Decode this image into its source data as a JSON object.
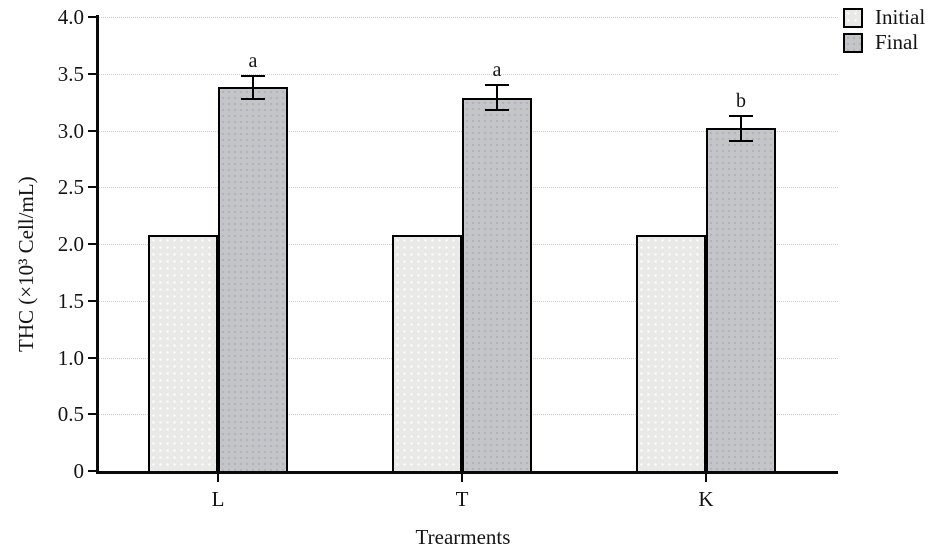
{
  "chart_data": {
    "type": "bar",
    "title": "",
    "xlabel": "Trearments",
    "ylabel": "THC (×10³ Cell/mL)",
    "ylim": [
      0,
      4.0
    ],
    "grid": true,
    "legend_position": "top-right",
    "categories": [
      "L",
      "T",
      "K"
    ],
    "yticks": [
      {
        "value": 0.0,
        "label": "0"
      },
      {
        "value": 0.5,
        "label": "0.5"
      },
      {
        "value": 1.0,
        "label": "1.0"
      },
      {
        "value": 1.5,
        "label": "1.5"
      },
      {
        "value": 2.0,
        "label": "2.0"
      },
      {
        "value": 2.5,
        "label": "2.5"
      },
      {
        "value": 3.0,
        "label": "3.0"
      },
      {
        "value": 3.5,
        "label": "3.5"
      },
      {
        "value": 4.0,
        "label": "4.0"
      }
    ],
    "series": [
      {
        "name": "Initial",
        "fill": "#e9eae8",
        "values": [
          2.08,
          2.08,
          2.08
        ],
        "errors": [
          0,
          0,
          0
        ],
        "letters": [
          "",
          "",
          ""
        ]
      },
      {
        "name": "Final",
        "fill": "#c3c5c8",
        "values": [
          3.38,
          3.29,
          3.02
        ],
        "errors": [
          0.11,
          0.12,
          0.12
        ],
        "letters": [
          "a",
          "a",
          "b"
        ]
      }
    ],
    "legend": [
      "Initial",
      "Final"
    ]
  },
  "colors": {
    "axis": "#0a0a0a",
    "gridline": "#cfcfcf",
    "bar_border": "#000000",
    "text": "#141414"
  }
}
